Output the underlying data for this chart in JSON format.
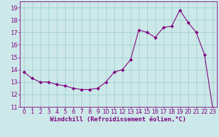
{
  "x": [
    0,
    1,
    2,
    3,
    4,
    5,
    6,
    7,
    8,
    9,
    10,
    11,
    12,
    13,
    14,
    15,
    16,
    17,
    18,
    19,
    20,
    21,
    22,
    23
  ],
  "y": [
    13.8,
    13.3,
    13.0,
    13.0,
    12.8,
    12.7,
    12.5,
    12.4,
    12.4,
    12.5,
    13.0,
    13.8,
    14.0,
    14.8,
    17.2,
    17.0,
    16.6,
    17.4,
    17.5,
    18.8,
    17.8,
    17.0,
    15.2,
    10.9
  ],
  "line_color": "#800080",
  "marker": "D",
  "marker_size": 2.2,
  "bg_color": "#cce8e8",
  "grid_color": "#99cccc",
  "xlabel": "Windchill (Refroidissement éolien,°C)",
  "xlabel_color": "#800080",
  "xlabel_fontsize": 6.5,
  "tick_color": "#800080",
  "tick_fontsize": 6,
  "ylim": [
    11,
    19.5
  ],
  "xlim": [
    -0.5,
    23.5
  ],
  "yticks": [
    11,
    12,
    13,
    14,
    15,
    16,
    17,
    18,
    19
  ],
  "xticks": [
    0,
    1,
    2,
    3,
    4,
    5,
    6,
    7,
    8,
    9,
    10,
    11,
    12,
    13,
    14,
    15,
    16,
    17,
    18,
    19,
    20,
    21,
    22,
    23
  ]
}
